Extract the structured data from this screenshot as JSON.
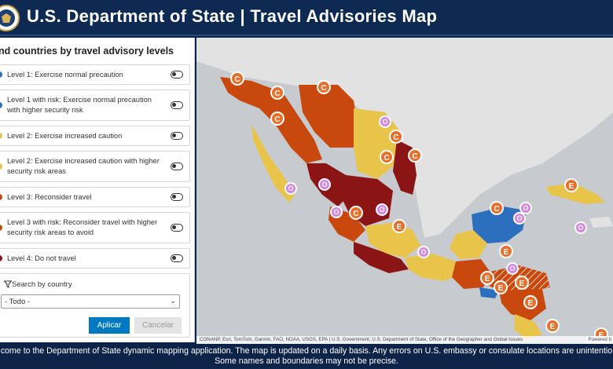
{
  "header": {
    "title": "U.S. Department of State | Travel Advisories Map",
    "seal_icon": "department-seal-icon"
  },
  "panel": {
    "title": "nd countries by travel advisory levels",
    "levels": [
      {
        "label": "Level 1: Exercise normal precaution",
        "color": "#2c6fbf"
      },
      {
        "label": "Level 1 with risk: Exercise normal precaution with higher security risk",
        "color": "#2c6fbf"
      },
      {
        "label": "Level 2: Exercise increased caution",
        "color": "#e8c54a"
      },
      {
        "label": "Level 2: Exercise increased caution with higher security risk areas",
        "color": "#e8c54a"
      },
      {
        "label": "Level 3: Reconsider travel",
        "color": "#c8480d"
      },
      {
        "label": "Level 3 with risk: Reconsider travel with higher security risk areas to avoid",
        "color": "#c8480d"
      },
      {
        "label": "Level 4: Do not travel",
        "color": "#8b1414"
      }
    ],
    "search": {
      "label": "Search by country",
      "selected": "- Todo -",
      "apply": "Aplicar",
      "cancel": "Cancelar"
    }
  },
  "map": {
    "attribution": "CONANP, Esri, TomTom, Garmin, FAO, NOAA, USGS, EPA | U.S. Government, U.S. Department of State, Office of the Geographer and Global Issues",
    "powered_by": "Powered b",
    "colors": {
      "water": "#c7cbcf",
      "land": "#e2e2e2",
      "level1": "#2c6fbf",
      "level2": "#e8c54a",
      "level3": "#c8480d",
      "level4": "#8b1414"
    },
    "marker_letters": {
      "consulate": "C",
      "embassy": "E",
      "other": "O"
    }
  },
  "footer": {
    "line1": "come to the Department of State dynamic mapping application.  The map is updated on a daily basis.  Any errors on U.S. embassy or consulate locations are unintentio",
    "line2": "Some names and boundaries may not be precise."
  }
}
